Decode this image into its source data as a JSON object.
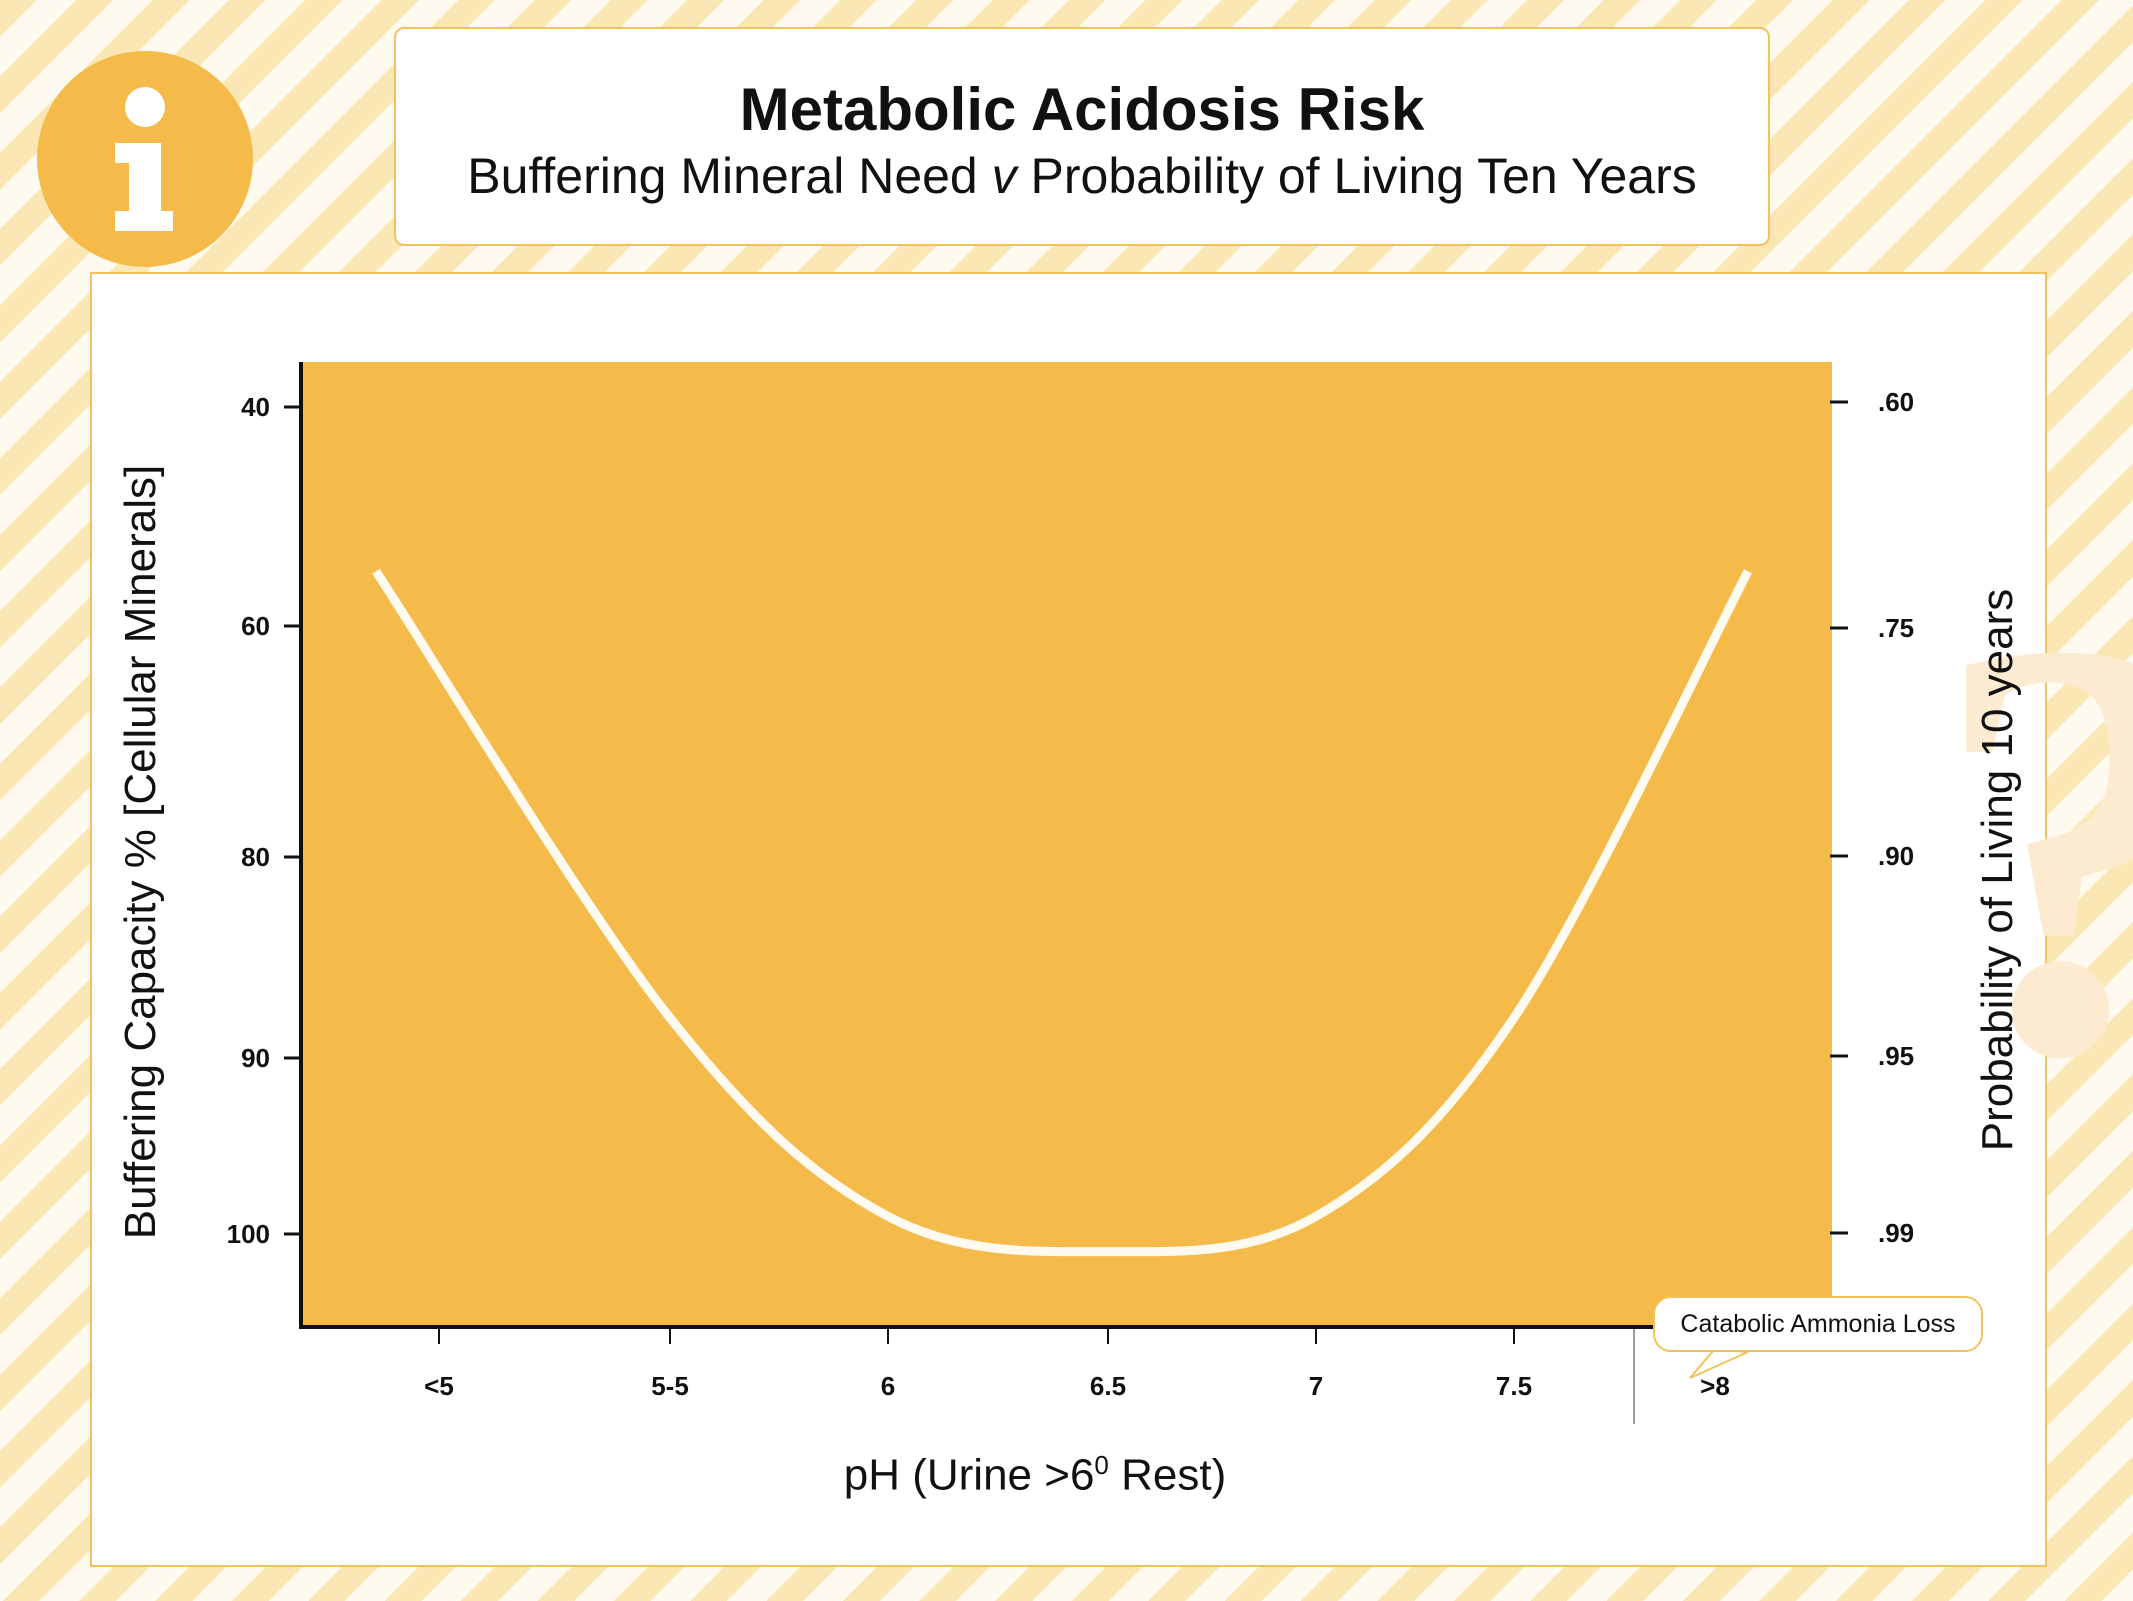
{
  "colors": {
    "accent": "#f4bb4a",
    "plot_background": "#f4bb4a",
    "curve": "#fffaf0",
    "border": "#f0c35c",
    "text": "#111111"
  },
  "icons": {
    "info": "info-icon",
    "watermark": "question-mark-watermark-icon"
  },
  "title": {
    "main": "Metabolic Acidosis Risk",
    "sub_prefix": "Buffering Mineral Need ",
    "sub_italic": "v",
    "sub_suffix": " Probability of Living Ten Years"
  },
  "callout": {
    "text": "Catabolic Ammonia Loss"
  },
  "chart_data": {
    "type": "line",
    "title": "Metabolic Acidosis Risk",
    "subtitle": "Buffering Mineral Need v Probability of Living Ten Years",
    "xlabel_prefix": "pH (Urine >6",
    "xlabel_sup": "0",
    "xlabel_suffix": " Rest)",
    "ylabel_left": "Buffering Capacity % [Cellular Minerals]",
    "ylabel_right": "Probability of Living 10 years",
    "x_categories": [
      "<5",
      "5-5",
      "6",
      "6.5",
      "7",
      "7.5",
      ">8"
    ],
    "y_left_ticks": [
      "40",
      "60",
      "80",
      "90",
      "100"
    ],
    "y_right_ticks": [
      ".60",
      ".75",
      ".90",
      ".95",
      ".99"
    ],
    "grid": false,
    "legend": "none",
    "series": [
      {
        "x": [
          "<5",
          "5-5",
          "6",
          "6.5",
          "7",
          "7.5",
          ">8"
        ],
        "y": [
          55,
          88,
          99,
          101,
          99,
          88,
          55
        ]
      }
    ]
  }
}
